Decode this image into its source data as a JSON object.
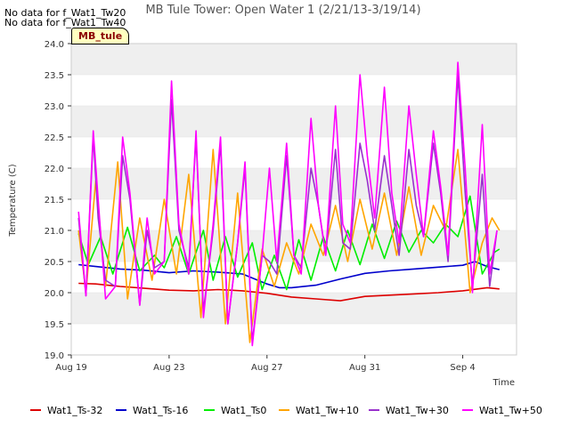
{
  "chart_data": {
    "type": "line",
    "title": "MB Tule Tower: Open Water 1 (2/21/13-3/19/14)",
    "xlabel": "Time",
    "ylabel": "Temperature (C)",
    "ylim": [
      19.0,
      24.0
    ],
    "yticks": [
      19.0,
      19.5,
      20.0,
      20.5,
      21.0,
      21.5,
      22.0,
      22.5,
      23.0,
      23.5,
      24.0
    ],
    "xlim": [
      0,
      18.2
    ],
    "xticks": [
      {
        "day": 0,
        "label": "Aug 19"
      },
      {
        "day": 4,
        "label": "Aug 23"
      },
      {
        "day": 8,
        "label": "Aug 27"
      },
      {
        "day": 12,
        "label": "Aug 31"
      },
      {
        "day": 16,
        "label": "Sep 4"
      }
    ],
    "grid_bands": true,
    "legend_position": "bottom",
    "notes": [
      "No data for f_Wat1_Tw20",
      "No data for f_Wat1_Tw40"
    ],
    "station_label": "MB_tule",
    "series": [
      {
        "name": "Wat1_Ts-32",
        "color": "#dd0000",
        "x": [
          0.3,
          1,
          2,
          3,
          4,
          5,
          6,
          7,
          8,
          9,
          10,
          11,
          12,
          13,
          14,
          15,
          16,
          17,
          17.5
        ],
        "y": [
          20.15,
          20.14,
          20.1,
          20.07,
          20.04,
          20.03,
          20.05,
          20.03,
          19.99,
          19.93,
          19.9,
          19.87,
          19.94,
          19.96,
          19.98,
          20.0,
          20.03,
          20.08,
          20.06
        ]
      },
      {
        "name": "Wat1_Ts-16",
        "color": "#0000cc",
        "x": [
          0.3,
          1,
          2,
          3,
          4,
          5,
          6,
          7,
          8,
          8.5,
          9,
          10,
          11,
          12,
          13,
          14,
          15,
          16,
          16.5,
          17,
          17.5
        ],
        "y": [
          20.45,
          20.42,
          20.38,
          20.36,
          20.32,
          20.35,
          20.33,
          20.3,
          20.14,
          20.08,
          20.08,
          20.12,
          20.22,
          20.31,
          20.35,
          20.38,
          20.41,
          20.44,
          20.5,
          20.42,
          20.37
        ]
      },
      {
        "name": "Wat1_Ts0",
        "color": "#00ee00",
        "x": [
          0.3,
          0.7,
          1.2,
          1.7,
          2.3,
          2.8,
          3.4,
          3.8,
          4.3,
          4.8,
          5.4,
          5.8,
          6.3,
          6.8,
          7.4,
          7.8,
          8.3,
          8.8,
          9.3,
          9.8,
          10.3,
          10.8,
          11.3,
          11.8,
          12.3,
          12.8,
          13.3,
          13.8,
          14.3,
          14.8,
          15.3,
          15.8,
          16.3,
          16.8,
          17.3,
          17.5
        ],
        "y": [
          20.95,
          20.45,
          20.9,
          20.3,
          21.05,
          20.35,
          20.6,
          20.4,
          20.9,
          20.3,
          21.0,
          20.2,
          20.9,
          20.25,
          20.8,
          20.05,
          20.6,
          20.05,
          20.85,
          20.2,
          20.9,
          20.35,
          21.0,
          20.45,
          21.1,
          20.55,
          21.15,
          20.65,
          21.0,
          20.8,
          21.1,
          20.9,
          21.55,
          20.3,
          20.65,
          20.7
        ]
      },
      {
        "name": "Wat1_Tw+10",
        "color": "#ffa500",
        "x": [
          0.3,
          0.6,
          1.0,
          1.4,
          1.9,
          2.3,
          2.8,
          3.3,
          3.8,
          4.3,
          4.8,
          5.3,
          5.8,
          6.3,
          6.8,
          7.3,
          7.8,
          8.3,
          8.8,
          9.3,
          9.8,
          10.3,
          10.8,
          11.3,
          11.8,
          12.3,
          12.8,
          13.3,
          13.8,
          14.3,
          14.8,
          15.3,
          15.8,
          16.3,
          16.8,
          17.2,
          17.5
        ],
        "y": [
          21.0,
          20.0,
          21.8,
          20.1,
          22.1,
          19.9,
          21.2,
          20.2,
          21.5,
          20.3,
          21.9,
          19.6,
          22.3,
          19.5,
          21.6,
          19.2,
          20.7,
          20.1,
          20.8,
          20.3,
          21.1,
          20.6,
          21.4,
          20.5,
          21.5,
          20.7,
          21.6,
          20.6,
          21.7,
          20.6,
          21.4,
          21.0,
          22.3,
          20.0,
          20.8,
          21.2,
          21.0
        ]
      },
      {
        "name": "Wat1_Tw+30",
        "color": "#9932cc",
        "x": [
          0.3,
          0.6,
          0.9,
          1.1,
          1.4,
          1.8,
          2.1,
          2.4,
          2.8,
          3.1,
          3.4,
          3.8,
          4.1,
          4.4,
          4.8,
          5.1,
          5.4,
          5.8,
          6.1,
          6.4,
          6.8,
          7.1,
          7.4,
          7.8,
          8.1,
          8.4,
          8.8,
          9.1,
          9.4,
          9.8,
          10.1,
          10.4,
          10.8,
          11.1,
          11.4,
          11.8,
          12.1,
          12.4,
          12.8,
          13.1,
          13.4,
          13.8,
          14.1,
          14.4,
          14.8,
          15.1,
          15.4,
          15.8,
          16.1,
          16.4,
          16.8,
          17.1,
          17.4
        ],
        "y": [
          21.2,
          19.95,
          22.5,
          21.2,
          20.2,
          20.1,
          22.2,
          21.5,
          19.8,
          21.0,
          20.4,
          20.5,
          23.1,
          21.0,
          20.4,
          22.5,
          19.7,
          21.0,
          22.4,
          19.5,
          20.8,
          22.0,
          19.2,
          20.6,
          20.5,
          20.3,
          22.2,
          20.6,
          20.4,
          22.0,
          21.4,
          20.6,
          22.3,
          20.8,
          20.7,
          22.4,
          21.8,
          21.0,
          22.2,
          21.4,
          20.6,
          22.3,
          21.4,
          20.9,
          22.4,
          21.6,
          20.5,
          23.5,
          21.6,
          20.1,
          21.9,
          20.1,
          21.0
        ]
      },
      {
        "name": "Wat1_Tw+50",
        "color": "#ff00ff",
        "x": [
          0.3,
          0.6,
          0.9,
          1.1,
          1.4,
          1.8,
          2.1,
          2.4,
          2.8,
          3.1,
          3.4,
          3.8,
          4.1,
          4.4,
          4.8,
          5.1,
          5.4,
          5.8,
          6.1,
          6.4,
          6.8,
          7.1,
          7.4,
          7.8,
          8.1,
          8.4,
          8.8,
          9.1,
          9.4,
          9.8,
          10.1,
          10.4,
          10.8,
          11.1,
          11.4,
          11.8,
          12.1,
          12.4,
          12.8,
          13.1,
          13.4,
          13.8,
          14.1,
          14.4,
          14.8,
          15.1,
          15.4,
          15.8,
          16.1,
          16.4,
          16.8,
          17.1,
          17.4
        ],
        "y": [
          21.3,
          19.95,
          22.6,
          21.5,
          19.9,
          20.1,
          22.5,
          21.6,
          19.8,
          21.2,
          20.3,
          20.5,
          23.4,
          21.1,
          20.3,
          22.6,
          19.6,
          21.1,
          22.5,
          19.5,
          20.8,
          22.1,
          19.15,
          20.6,
          22.0,
          20.5,
          22.4,
          20.6,
          20.3,
          22.8,
          21.4,
          20.6,
          23.0,
          21.1,
          20.8,
          23.5,
          22.2,
          21.2,
          23.3,
          21.6,
          20.8,
          23.0,
          21.9,
          20.9,
          22.6,
          21.7,
          20.6,
          23.7,
          22.0,
          20.0,
          22.7,
          20.3,
          21.0
        ]
      }
    ]
  }
}
